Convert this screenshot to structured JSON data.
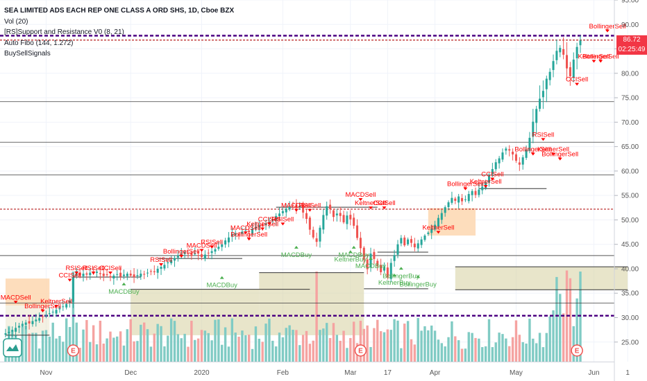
{
  "legend": {
    "title": "SEA LIMITED ADS EACH REP ONE CLASS A ORD SHS, 1D, Cboe BZX",
    "vol": "Vol (20)",
    "sr": "[RS]Support and Resistance V0 (8, 21)",
    "fibo": "Auto Fibo (144, 1.272)",
    "signals": "BuySellSignals"
  },
  "badges": {
    "price": "86.72",
    "countdown": "02:25:49",
    "price_color": "#f23645",
    "countdown_color": "#f23645"
  },
  "colors": {
    "up": "#26a69a",
    "down": "#ef5350",
    "vol_up": "#80cbc4",
    "vol_down": "#f5a3a1",
    "sell_label": "#ff0000",
    "buy_label": "#4caf50",
    "purple_line": "#4b0082",
    "red_line": "#b71c1c",
    "fib_zone": "#d8d3a6",
    "orange_zone": "#fdd9b5"
  },
  "chart_data": {
    "type": "candlestick",
    "y_axis": {
      "min": 21,
      "max": 95,
      "ticks": [
        25,
        30,
        35,
        40,
        45,
        50,
        55,
        60,
        65,
        70,
        75,
        80,
        85,
        90,
        95
      ],
      "tick_labels": [
        "25.00",
        "30.00",
        "35.00",
        "40.00",
        "45.00",
        "50.00",
        "55.00",
        "60.00",
        "65.00",
        "70.00",
        "75.00",
        "80.00",
        "85.00",
        "90.00",
        "95.00"
      ]
    },
    "x_axis": {
      "labels": [
        {
          "text": "Nov",
          "day": 12
        },
        {
          "text": "Dec",
          "day": 37
        },
        {
          "text": "2020",
          "day": 58
        },
        {
          "text": "Feb",
          "day": 82
        },
        {
          "text": "Mar",
          "day": 102
        },
        {
          "text": "17",
          "day": 113
        },
        {
          "text": "Apr",
          "day": 127
        },
        {
          "text": "May",
          "day": 151
        },
        {
          "text": "Jun",
          "day": 174
        },
        {
          "text": "1",
          "day": 184
        }
      ]
    },
    "series_close": [
      26.8,
      27.1,
      27.5,
      27.9,
      28.3,
      28.6,
      29.0,
      28.8,
      29.3,
      29.6,
      29.9,
      30.2,
      30.5,
      30.9,
      31.2,
      31.6,
      31.9,
      32.3,
      32.8,
      33.5,
      38.2,
      39.5,
      38.6,
      39.0,
      38.8,
      39.2,
      39.1,
      39.4,
      38.9,
      38.5,
      38.7,
      38.2,
      38.6,
      38.9,
      38.4,
      38.8,
      39.0,
      38.6,
      38.3,
      38.7,
      39.0,
      38.8,
      39.2,
      39.5,
      39.3,
      40.0,
      40.4,
      40.8,
      41.3,
      41.8,
      42.2,
      42.6,
      43.0,
      43.4,
      43.0,
      42.6,
      43.1,
      42.8,
      42.4,
      42.9,
      43.2,
      43.6,
      44.0,
      44.5,
      45.0,
      45.8,
      46.4,
      47.0,
      47.3,
      46.9,
      47.6,
      48.0,
      47.5,
      48.2,
      48.6,
      49.0,
      48.7,
      49.3,
      49.6,
      50.2,
      50.8,
      51.3,
      51.8,
      52.3,
      52.7,
      53.0,
      52.4,
      52.9,
      51.5,
      50.2,
      48.0,
      46.4,
      45.5,
      48.4,
      51.0,
      52.8,
      52.2,
      50.6,
      51.3,
      50.8,
      49.5,
      50.9,
      50.1,
      48.8,
      46.3,
      44.2,
      41.8,
      39.9,
      43.1,
      42.0,
      40.5,
      39.3,
      40.4,
      38.2,
      41.2,
      42.8,
      45.0,
      46.3,
      44.8,
      46.0,
      45.3,
      44.4,
      45.2,
      46.0,
      46.8,
      47.4,
      48.2,
      49.0,
      50.4,
      51.4,
      52.6,
      53.6,
      54.5,
      53.9,
      54.8,
      53.8,
      54.2,
      55.3,
      55.9,
      55.1,
      56.2,
      56.8,
      57.7,
      59.1,
      60.4,
      61.8,
      62.6,
      63.8,
      64.6,
      64.2,
      63.4,
      62.1,
      61.3,
      62.8,
      64.4,
      66.8,
      70.1,
      72.7,
      74.8,
      76.4,
      78.9,
      80.3,
      82.5,
      84.6,
      85.2,
      83.8,
      81.0,
      79.4,
      82.8,
      85.4,
      86.72
    ],
    "annotations_sell": [
      "MACDSell",
      "BollingerSell",
      "KeltnerSell",
      "CCISell",
      "RSISell",
      "RSISell",
      "CCISell",
      "RSISell",
      "BollingerSell",
      "MACDSell",
      "RSISell",
      "MACDSell",
      "KeltnerSell",
      "CCISell",
      "RSISell",
      "BollingerSell",
      "MACDSell",
      "RSISell",
      "MACDSell",
      "KeltnerSell",
      "CCISell",
      "KeltnerSell",
      "BollingerSell",
      "CCISell",
      "KeltnerSell",
      "BollingerSell",
      "RSISell",
      "KeltnerSell",
      "BollingerSell",
      "CCISell",
      "BollingerSell",
      "KeltnerSell",
      "BollingerSell"
    ],
    "annotations_buy": [
      "MACDBuy",
      "MACDBuy",
      "MACDBuy",
      "MACDBuy",
      "KeltnerBuy",
      "MACDBuy",
      "BollingerBuy",
      "KeltnerBuy",
      "BollingerBuy"
    ],
    "levels": {
      "purple_dashed": [
        87.7,
        30.4
      ],
      "red_dotted": [
        52.2,
        86.8
      ],
      "gray_solid": [
        74.2,
        65.9,
        59.2,
        42.7,
        33.0
      ]
    }
  }
}
